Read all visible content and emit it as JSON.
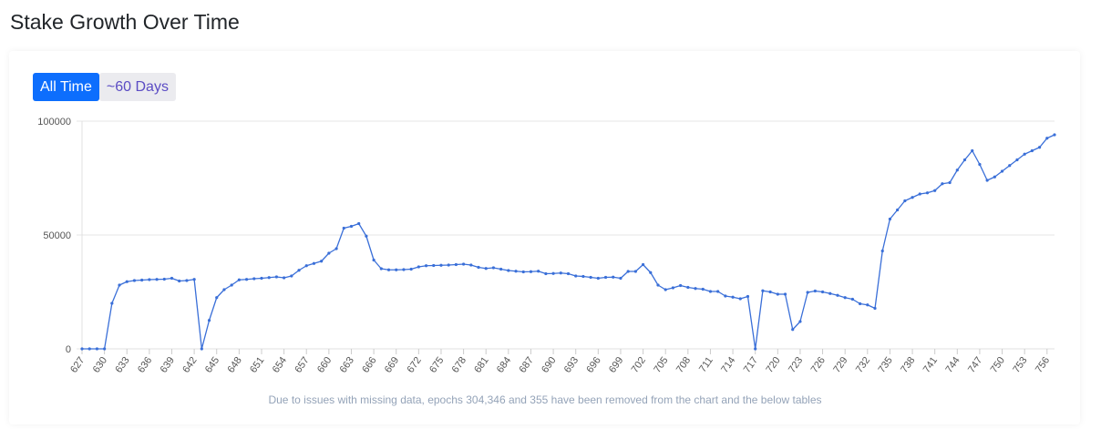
{
  "heading": "Stake Growth Over Time",
  "buttons": [
    "All Time",
    "~60 Days"
  ],
  "chart_data": {
    "type": "line",
    "x": [
      627,
      628,
      629,
      630,
      631,
      632,
      633,
      634,
      635,
      636,
      637,
      638,
      639,
      640,
      641,
      642,
      643,
      644,
      645,
      646,
      647,
      648,
      649,
      650,
      651,
      652,
      653,
      654,
      655,
      656,
      657,
      658,
      659,
      660,
      661,
      662,
      663,
      664,
      665,
      666,
      667,
      668,
      669,
      670,
      671,
      672,
      673,
      674,
      675,
      676,
      677,
      678,
      679,
      680,
      681,
      682,
      683,
      684,
      685,
      686,
      687,
      688,
      689,
      690,
      691,
      692,
      693,
      694,
      695,
      696,
      697,
      698,
      699,
      700,
      701,
      702,
      703,
      704,
      705,
      706,
      707,
      708,
      709,
      710,
      711,
      712,
      713,
      714,
      715,
      716,
      717,
      718,
      719,
      720,
      721,
      722,
      723,
      724,
      725,
      726,
      727,
      728,
      729,
      730,
      731,
      732,
      733,
      734,
      735,
      736,
      737,
      738,
      739,
      740,
      741,
      742,
      743,
      744,
      745,
      746,
      747,
      748,
      749,
      750,
      751,
      752,
      753,
      754,
      755,
      756,
      757
    ],
    "series": [
      {
        "name": "Stake",
        "color": "#3a6fd8",
        "values": [
          0,
          0,
          0,
          0,
          20000,
          28000,
          29500,
          30000,
          30200,
          30400,
          30500,
          30600,
          31000,
          29800,
          30000,
          30500,
          0,
          12500,
          22500,
          26000,
          28000,
          30300,
          30500,
          30800,
          31000,
          31300,
          31600,
          31200,
          32000,
          34500,
          36500,
          37500,
          38500,
          42000,
          44000,
          53000,
          53800,
          55000,
          49500,
          39000,
          35200,
          34700,
          34700,
          34800,
          35000,
          36000,
          36500,
          36600,
          36700,
          36800,
          37000,
          37200,
          36800,
          35800,
          35300,
          35600,
          35000,
          34400,
          34100,
          33800,
          33900,
          34100,
          33000,
          33100,
          33300,
          33000,
          32000,
          31800,
          31400,
          31000,
          31400,
          31500,
          31000,
          34000,
          34000,
          37000,
          33500,
          28000,
          26000,
          26800,
          27800,
          27000,
          26500,
          26200,
          25200,
          25200,
          23200,
          22700,
          22000,
          23000,
          0,
          25500,
          25000,
          24000,
          24000,
          8500,
          12000,
          24800,
          25400,
          25000,
          24300,
          23500,
          22500,
          21800,
          19800,
          19300,
          17800,
          43000,
          57000,
          61000,
          65000,
          66500,
          68000,
          68500,
          69500,
          72500,
          73000,
          78500,
          83000,
          87000,
          81000,
          74000,
          75500,
          78000,
          80500,
          83000,
          85500,
          87000,
          88500,
          92500,
          94000
        ]
      }
    ],
    "xlim": [
      627,
      757
    ],
    "xticks": [
      627,
      630,
      633,
      636,
      639,
      642,
      645,
      648,
      651,
      654,
      657,
      660,
      663,
      666,
      669,
      672,
      675,
      678,
      681,
      684,
      687,
      690,
      693,
      696,
      699,
      702,
      705,
      708,
      711,
      714,
      717,
      720,
      723,
      726,
      729,
      732,
      735,
      738,
      741,
      744,
      747,
      750,
      753,
      756
    ],
    "ylim": [
      0,
      100000
    ],
    "yticks": [
      0,
      50000,
      100000
    ],
    "grid": true,
    "note": "Due to issues with missing data, epochs 304,346 and 355 have been removed from the chart and the below tables"
  }
}
